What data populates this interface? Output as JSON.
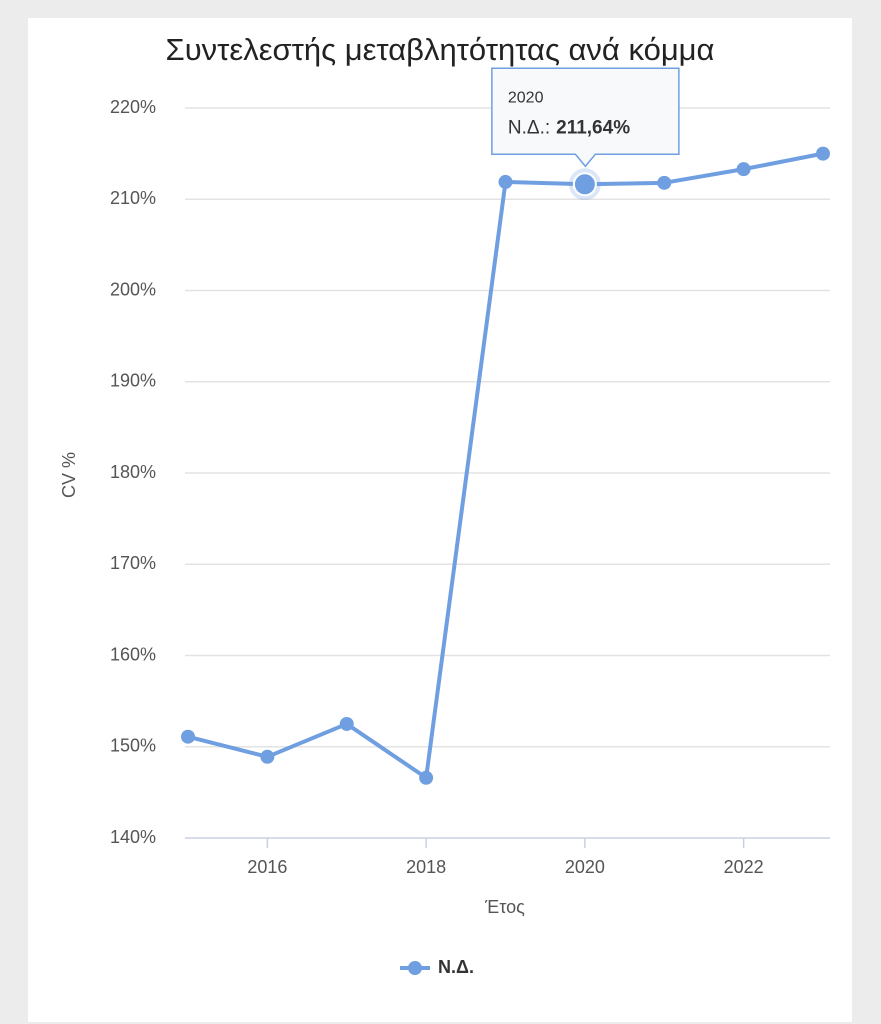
{
  "chart_data": {
    "type": "line",
    "title": "Συντελεστής μεταβλητότητας ανά κόμμα",
    "x_label": "Έτος",
    "y_label": "CV %",
    "x": [
      2015,
      2016,
      2017,
      2018,
      2019,
      2020,
      2021,
      2022,
      2023
    ],
    "series": [
      {
        "name": "Ν.Δ.",
        "color": "#6f9fe0",
        "values": [
          151.1,
          148.9,
          152.5,
          146.6,
          211.9,
          211.64,
          211.8,
          213.3,
          215.0
        ]
      }
    ],
    "xlim": [
      2015,
      2023
    ],
    "xticks": [
      2016,
      2018,
      2020,
      2022
    ],
    "ylim": [
      140,
      220
    ],
    "yticks": [
      {
        "value": 140,
        "label": "140%"
      },
      {
        "value": 150,
        "label": "150%"
      },
      {
        "value": 160,
        "label": "160%"
      },
      {
        "value": 170,
        "label": "170%"
      },
      {
        "value": 180,
        "label": "180%"
      },
      {
        "value": 190,
        "label": "190%"
      },
      {
        "value": 200,
        "label": "200%"
      },
      {
        "value": 210,
        "label": "210%"
      },
      {
        "value": 220,
        "label": "220%"
      }
    ],
    "grid": true,
    "legend": "bottom",
    "tooltip": {
      "x": "2020",
      "series_label": "Ν.Δ.:",
      "value_label": "211,64%"
    }
  }
}
